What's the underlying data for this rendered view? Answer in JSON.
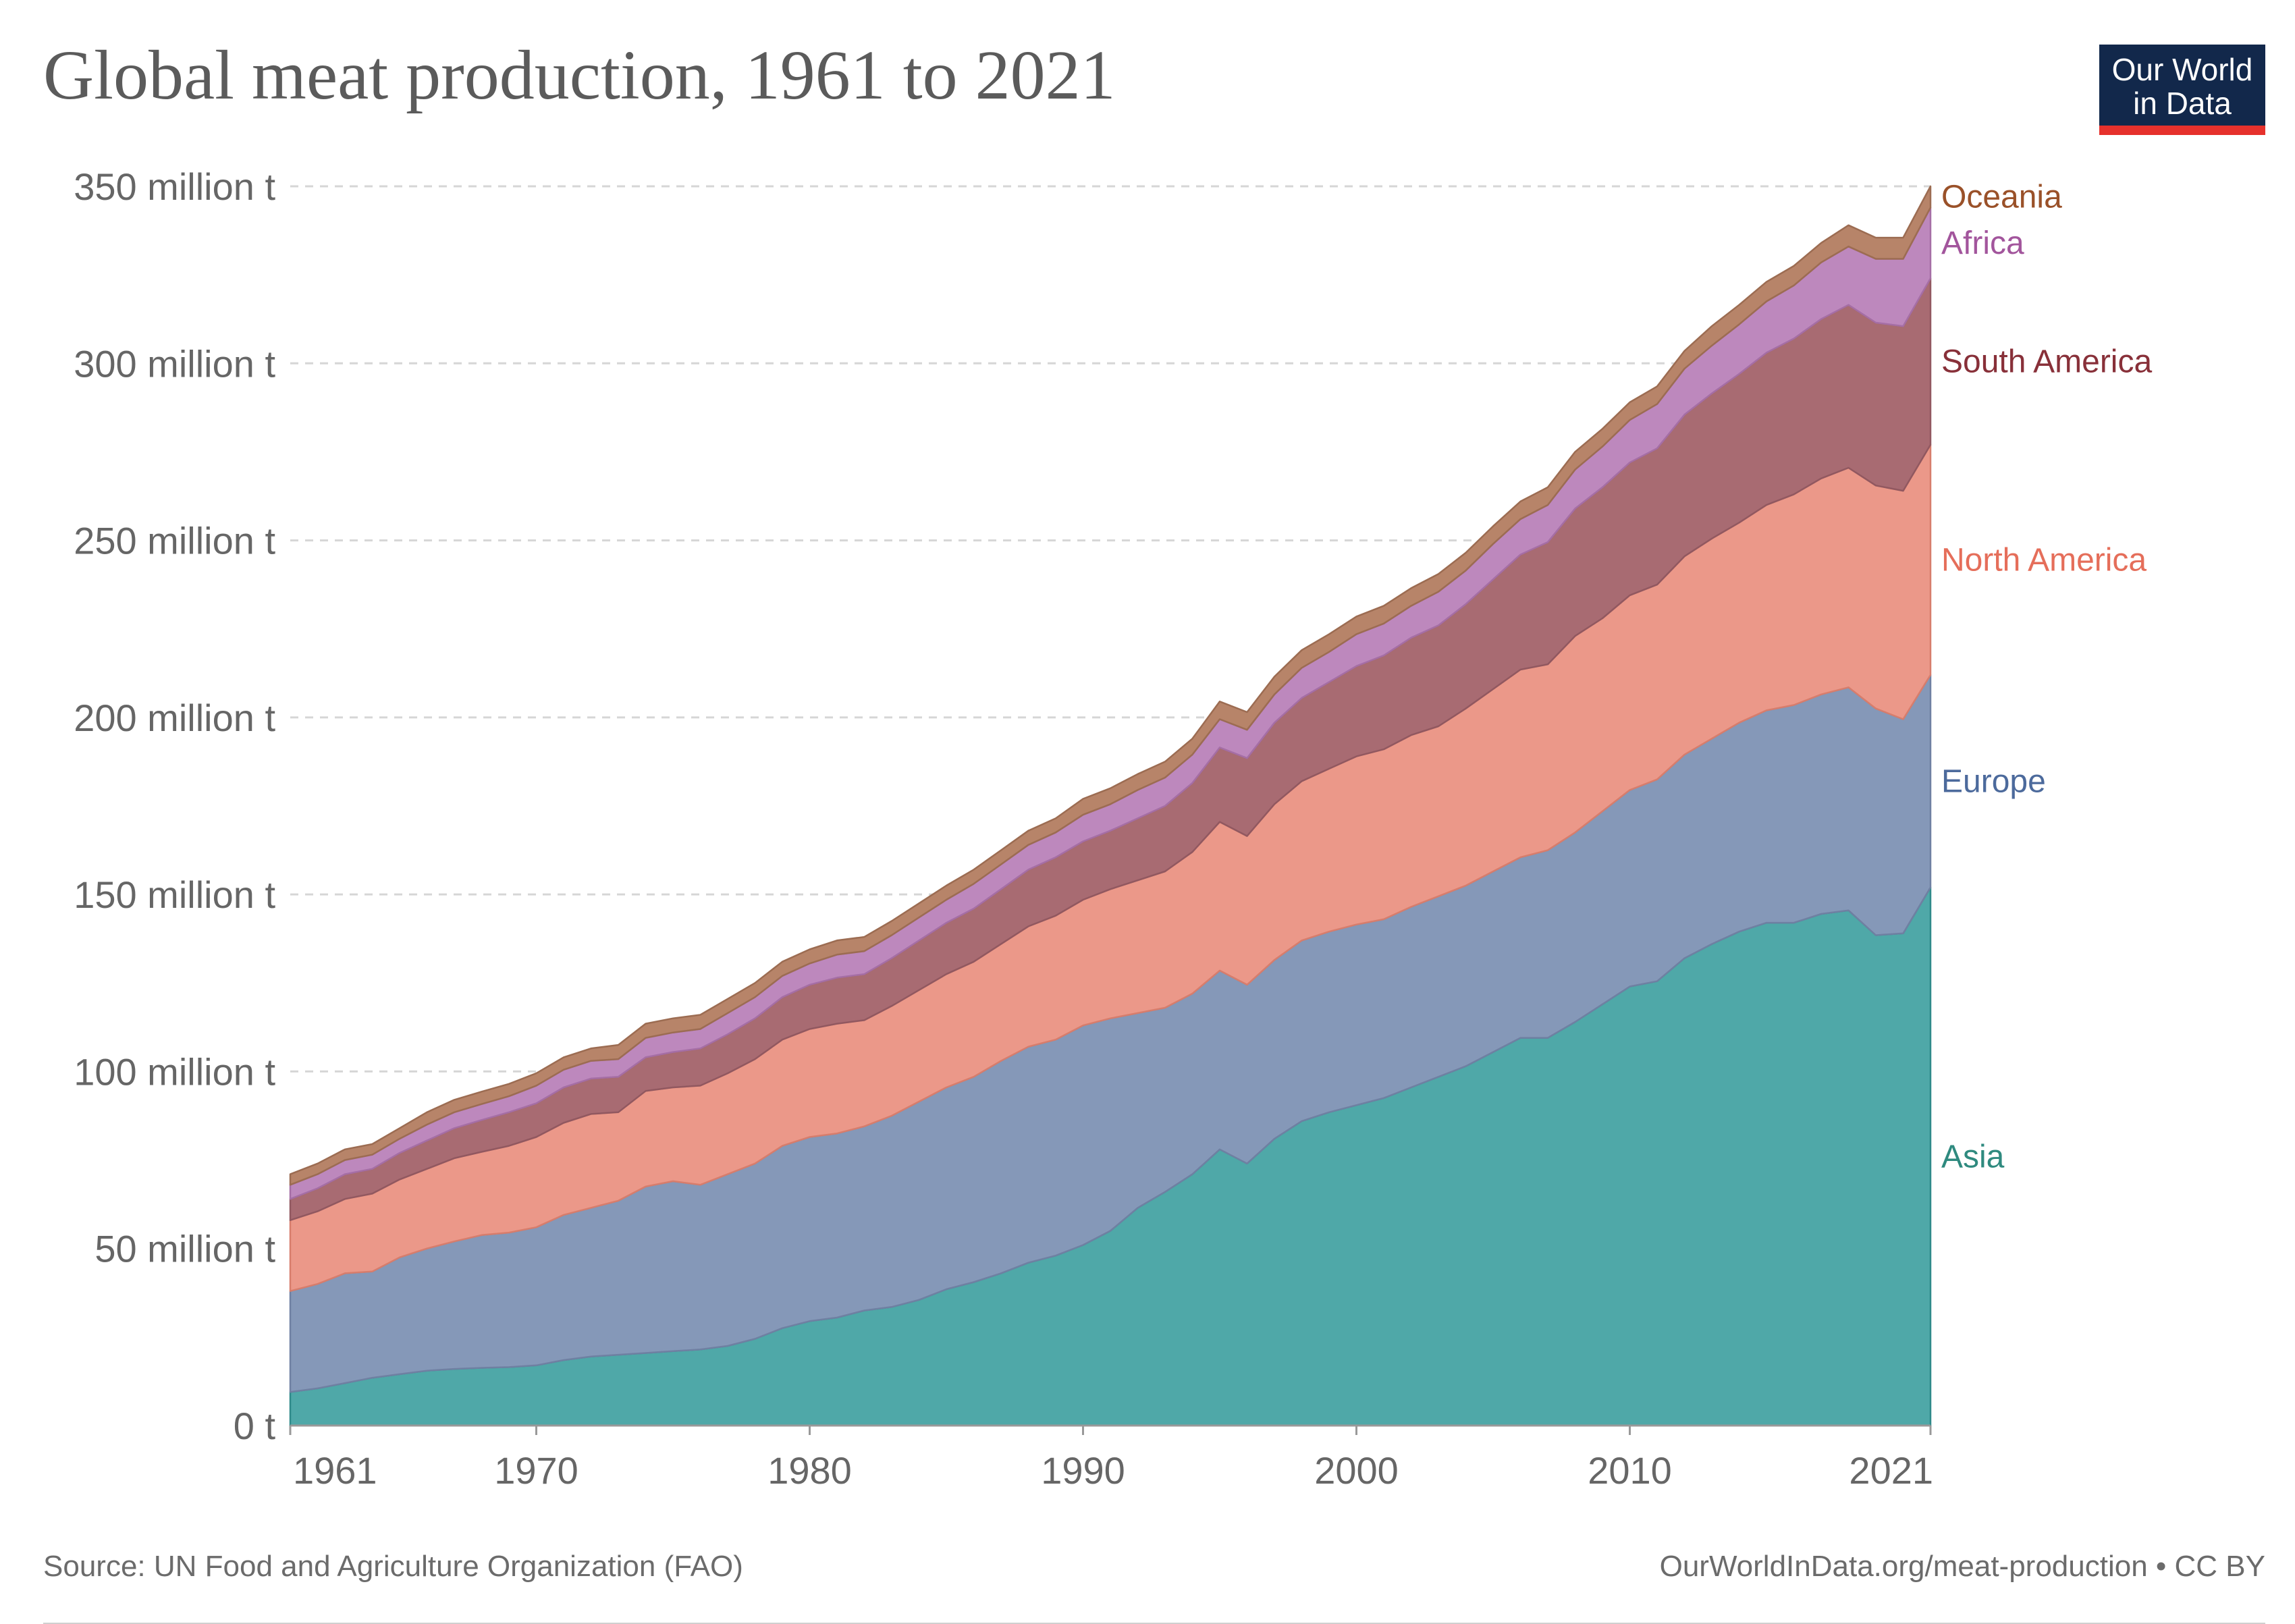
{
  "header": {
    "title": "Global meat production, 1961 to 2021"
  },
  "logo": {
    "line1": "Our World",
    "line2": "in Data"
  },
  "footer": {
    "source": "Source: UN Food and Agriculture Organization (FAO)",
    "credit": "OurWorldInData.org/meat-production • CC BY"
  },
  "chart_data": {
    "type": "area",
    "stacked": true,
    "title": "Global meat production, 1961 to 2021",
    "xlabel": "",
    "ylabel": "",
    "x": [
      1961,
      1962,
      1963,
      1964,
      1965,
      1966,
      1967,
      1968,
      1969,
      1970,
      1971,
      1972,
      1973,
      1974,
      1975,
      1976,
      1977,
      1978,
      1979,
      1980,
      1981,
      1982,
      1983,
      1984,
      1985,
      1986,
      1987,
      1988,
      1989,
      1990,
      1991,
      1992,
      1993,
      1994,
      1995,
      1996,
      1997,
      1998,
      1999,
      2000,
      2001,
      2002,
      2003,
      2004,
      2005,
      2006,
      2007,
      2008,
      2009,
      2010,
      2011,
      2012,
      2013,
      2014,
      2015,
      2016,
      2017,
      2018,
      2019,
      2020,
      2021
    ],
    "xlim": [
      1961,
      2021
    ],
    "ylim": [
      0,
      350
    ],
    "x_ticks": [
      {
        "value": 1961,
        "label": "1961"
      },
      {
        "value": 1970,
        "label": "1970"
      },
      {
        "value": 1980,
        "label": "1980"
      },
      {
        "value": 1990,
        "label": "1990"
      },
      {
        "value": 2000,
        "label": "2000"
      },
      {
        "value": 2010,
        "label": "2010"
      },
      {
        "value": 2021,
        "label": "2021"
      }
    ],
    "y_ticks": [
      {
        "value": 0,
        "label": "0 t"
      },
      {
        "value": 50,
        "label": "50 million t"
      },
      {
        "value": 100,
        "label": "100 million t"
      },
      {
        "value": 150,
        "label": "150 million t"
      },
      {
        "value": 200,
        "label": "200 million t"
      },
      {
        "value": 250,
        "label": "250 million t"
      },
      {
        "value": 300,
        "label": "300 million t"
      },
      {
        "value": 350,
        "label": "350 million t"
      }
    ],
    "legend": "right",
    "grid": true,
    "series": [
      {
        "name": "Asia",
        "fill": "#4fa8a8",
        "stroke": "#2f8a8a",
        "label_color": "#2f8a7f",
        "values": [
          9.5,
          10.5,
          12,
          13.5,
          14.5,
          15.5,
          16,
          16.3,
          16.5,
          17,
          18.5,
          19.5,
          20,
          20.5,
          21,
          21.5,
          22.5,
          24.5,
          27.5,
          29.5,
          30.5,
          32.5,
          33.5,
          35.5,
          38.5,
          40.5,
          43,
          46,
          48,
          51,
          55,
          61.5,
          66,
          71,
          78,
          74,
          81,
          86,
          88.5,
          90.5,
          92.5,
          95.5,
          98.5,
          101.5,
          105.5,
          109.5,
          109.5,
          114,
          119,
          124,
          125.5,
          132,
          136,
          139.5,
          142,
          142,
          144.5,
          145.5,
          138.5,
          139,
          152
        ]
      },
      {
        "name": "Europe",
        "fill": "#8598b8",
        "stroke": "#6f80a2",
        "label_color": "#4c6a9c",
        "values": [
          28.5,
          29.5,
          31,
          30,
          33,
          34.5,
          36,
          37.5,
          38,
          39,
          41,
          42,
          43.5,
          47,
          48,
          46.5,
          48.5,
          49.5,
          51.5,
          52,
          52,
          52,
          54,
          56,
          57,
          58,
          60,
          61,
          61,
          62,
          60,
          55,
          52,
          51,
          50.5,
          50.5,
          50.5,
          51,
          51,
          51,
          50.5,
          51,
          51,
          51,
          51,
          51,
          53,
          53.5,
          54.5,
          55.5,
          57,
          57.5,
          58,
          59,
          60,
          61.5,
          62,
          63,
          64,
          60.5,
          60
        ]
      },
      {
        "name": "North America",
        "fill": "#eb9889",
        "stroke": "#d77d6c",
        "label_color": "#e56e5a",
        "values": [
          20,
          20.5,
          21,
          22,
          22,
          22.5,
          23.5,
          23.5,
          24.5,
          25.5,
          26,
          26.5,
          25,
          27,
          26.5,
          28,
          28.5,
          29.5,
          30,
          30.5,
          31,
          30,
          31,
          31.5,
          32,
          32.5,
          33,
          34,
          35,
          35.5,
          36.5,
          37.5,
          38.5,
          40,
          42,
          42,
          44,
          45,
          46,
          47.5,
          48,
          48.5,
          48,
          50,
          51.5,
          53,
          52.5,
          55.5,
          54.5,
          55,
          55,
          56,
          56.5,
          56.5,
          58,
          59.5,
          61,
          62,
          63,
          64.5,
          65
        ]
      },
      {
        "name": "South America",
        "fill": "#a86b72",
        "stroke": "#915860",
        "label_color": "#883039",
        "values": [
          6,
          6.5,
          7,
          7,
          7.5,
          8,
          8.5,
          9,
          9.5,
          9.5,
          10,
          10,
          10,
          9.5,
          10,
          10.5,
          11,
          11.5,
          12,
          12.5,
          13,
          13,
          13.5,
          14,
          14.5,
          15,
          15.5,
          16,
          16.5,
          16.5,
          16.5,
          17.5,
          18.5,
          19.5,
          21,
          22,
          23,
          23.5,
          24.5,
          25.5,
          26.5,
          27.5,
          28.5,
          29.5,
          31,
          32.5,
          34.5,
          36,
          37,
          37.5,
          38.5,
          40,
          41,
          42,
          43,
          44,
          45,
          46,
          46,
          46.5,
          47
        ]
      },
      {
        "name": "Africa",
        "fill": "#bd88bd",
        "stroke": "#a56ea5",
        "label_color": "#a2559c",
        "values": [
          4,
          4,
          4,
          4,
          4,
          4.5,
          4.5,
          4.5,
          4.5,
          5,
          5,
          5,
          5,
          5.5,
          5.5,
          5.5,
          6,
          6,
          6,
          6,
          6.5,
          6.5,
          6.5,
          6.5,
          6.5,
          7,
          7,
          7,
          7,
          7.5,
          7.5,
          8,
          8,
          8,
          8,
          8,
          8,
          8.5,
          8.5,
          9,
          9,
          9,
          9.5,
          9.5,
          10,
          10,
          10.5,
          11,
          11.5,
          12,
          12.5,
          13,
          13.5,
          14,
          14.5,
          15,
          16,
          16.5,
          18,
          19,
          20
        ]
      },
      {
        "name": "Oceania",
        "fill": "#b78469",
        "stroke": "#9c6c52",
        "label_color": "#9a5129",
        "values": [
          3,
          3,
          3,
          3,
          3,
          3.5,
          3.5,
          3.5,
          3.5,
          3.5,
          3.5,
          3.5,
          4,
          4,
          4,
          4,
          4,
          4,
          4,
          4,
          4,
          4,
          4,
          4,
          4,
          4,
          4,
          4,
          4,
          4.5,
          4.5,
          4.5,
          4.5,
          4.5,
          5,
          5,
          5,
          5,
          5,
          5,
          5,
          5,
          5,
          5,
          5,
          5,
          5,
          5,
          5,
          5,
          5,
          5,
          5.5,
          5.5,
          5.5,
          5.5,
          5.5,
          6,
          6,
          6,
          6
        ]
      }
    ]
  }
}
